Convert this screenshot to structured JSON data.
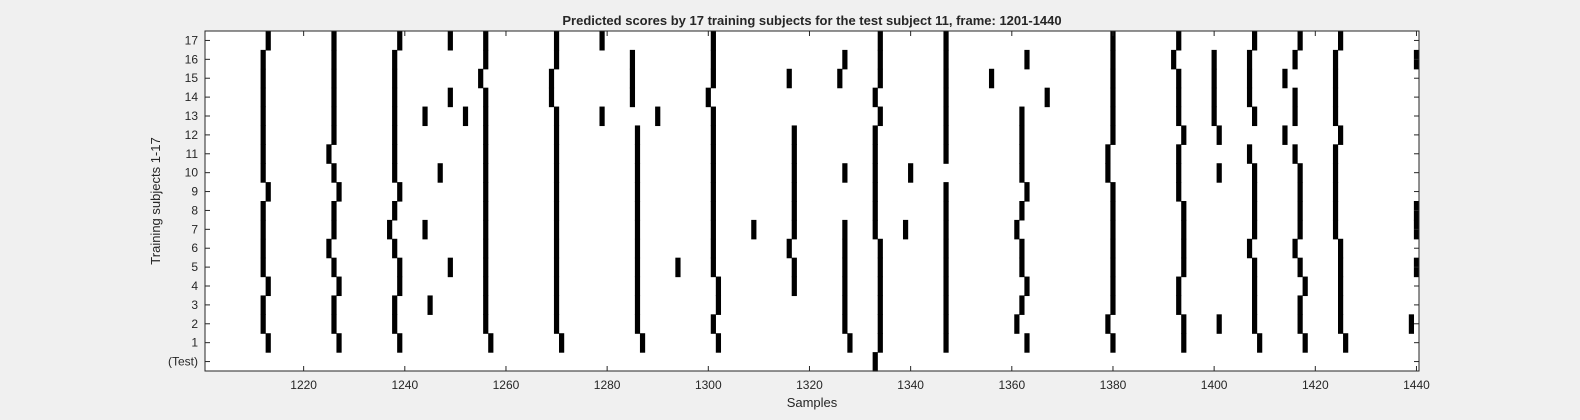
{
  "chart_data": {
    "type": "raster",
    "title": "Predicted scores by 17 training subjects for the test subject 11, frame: 1201-1440",
    "xlabel": "Samples",
    "ylabel": "Training subjects 1-17",
    "xlim": [
      1201,
      1440
    ],
    "x_ticks": [
      1220,
      1240,
      1260,
      1280,
      1300,
      1320,
      1340,
      1360,
      1380,
      1400,
      1420,
      1440
    ],
    "y_ticks": [
      "17",
      "16",
      "15",
      "14",
      "13",
      "12",
      "11",
      "10",
      "9",
      "8",
      "7",
      "6",
      "5",
      "4",
      "3",
      "2",
      "1",
      "(Test)"
    ],
    "marker_color": "#000000",
    "background": "#ffffff",
    "rows": [
      {
        "label": "17",
        "events": [
          1213,
          1226,
          1239,
          1249,
          1256,
          1270,
          1279,
          1301,
          1334,
          1347,
          1380,
          1393,
          1408,
          1417,
          1425
        ]
      },
      {
        "label": "16",
        "events": [
          1212,
          1226,
          1238,
          1256,
          1270,
          1285,
          1301,
          1327,
          1334,
          1347,
          1363,
          1380,
          1392,
          1400,
          1407,
          1416,
          1424,
          1440
        ]
      },
      {
        "label": "15",
        "events": [
          1212,
          1226,
          1238,
          1255,
          1269,
          1285,
          1301,
          1316,
          1326,
          1334,
          1347,
          1356,
          1380,
          1393,
          1400,
          1407,
          1414,
          1424
        ]
      },
      {
        "label": "14",
        "events": [
          1212,
          1226,
          1238,
          1249,
          1256,
          1269,
          1285,
          1300,
          1333,
          1347,
          1367,
          1380,
          1393,
          1400,
          1407,
          1416,
          1424
        ]
      },
      {
        "label": "13",
        "events": [
          1212,
          1226,
          1238,
          1244,
          1252,
          1256,
          1270,
          1279,
          1290,
          1301,
          1334,
          1347,
          1362,
          1380,
          1393,
          1400,
          1408,
          1416,
          1424
        ]
      },
      {
        "label": "12",
        "events": [
          1212,
          1226,
          1238,
          1256,
          1270,
          1286,
          1301,
          1317,
          1333,
          1347,
          1362,
          1380,
          1394,
          1401,
          1414,
          1425
        ]
      },
      {
        "label": "11",
        "events": [
          1212,
          1225,
          1238,
          1256,
          1270,
          1286,
          1301,
          1317,
          1333,
          1347,
          1362,
          1379,
          1393,
          1407,
          1416,
          1424
        ]
      },
      {
        "label": "10",
        "events": [
          1212,
          1226,
          1238,
          1247,
          1256,
          1270,
          1286,
          1301,
          1317,
          1327,
          1333,
          1340,
          1362,
          1379,
          1393,
          1401,
          1408,
          1417,
          1424
        ]
      },
      {
        "label": "9",
        "events": [
          1213,
          1227,
          1239,
          1256,
          1270,
          1286,
          1301,
          1317,
          1333,
          1347,
          1363,
          1380,
          1393,
          1408,
          1417,
          1424
        ]
      },
      {
        "label": "8",
        "events": [
          1212,
          1226,
          1238,
          1256,
          1270,
          1286,
          1301,
          1317,
          1333,
          1347,
          1362,
          1380,
          1394,
          1408,
          1417,
          1424,
          1440
        ]
      },
      {
        "label": "7",
        "events": [
          1212,
          1226,
          1237,
          1244,
          1256,
          1270,
          1286,
          1301,
          1309,
          1317,
          1327,
          1333,
          1339,
          1347,
          1361,
          1380,
          1394,
          1408,
          1417,
          1424,
          1440
        ]
      },
      {
        "label": "6",
        "events": [
          1212,
          1225,
          1238,
          1256,
          1270,
          1286,
          1301,
          1316,
          1327,
          1334,
          1347,
          1362,
          1380,
          1394,
          1407,
          1416,
          1425
        ]
      },
      {
        "label": "5",
        "events": [
          1212,
          1226,
          1239,
          1249,
          1256,
          1270,
          1286,
          1294,
          1301,
          1317,
          1327,
          1334,
          1347,
          1362,
          1380,
          1394,
          1408,
          1417,
          1425,
          1440
        ]
      },
      {
        "label": "4",
        "events": [
          1213,
          1227,
          1239,
          1256,
          1270,
          1286,
          1302,
          1317,
          1327,
          1334,
          1347,
          1363,
          1380,
          1393,
          1408,
          1418,
          1425
        ]
      },
      {
        "label": "3",
        "events": [
          1212,
          1226,
          1238,
          1245,
          1256,
          1270,
          1286,
          1302,
          1327,
          1334,
          1347,
          1362,
          1380,
          1393,
          1408,
          1417,
          1425
        ]
      },
      {
        "label": "2",
        "events": [
          1212,
          1226,
          1238,
          1256,
          1270,
          1286,
          1301,
          1327,
          1334,
          1347,
          1361,
          1379,
          1394,
          1401,
          1408,
          1417,
          1425,
          1439
        ]
      },
      {
        "label": "1",
        "events": [
          1213,
          1227,
          1239,
          1257,
          1271,
          1287,
          1302,
          1328,
          1334,
          1347,
          1363,
          1380,
          1394,
          1409,
          1418,
          1426
        ]
      },
      {
        "label": "(Test)",
        "events": [
          1333
        ]
      }
    ]
  }
}
